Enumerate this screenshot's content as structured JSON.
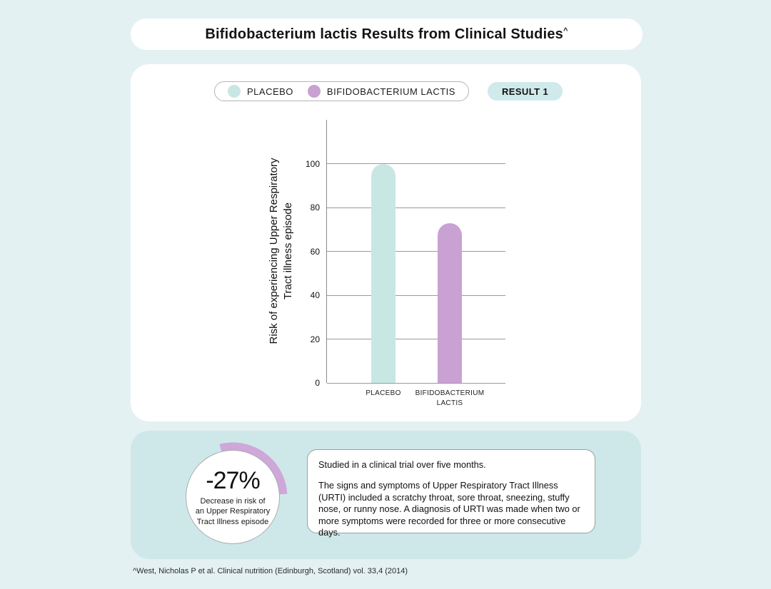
{
  "title": {
    "text": "Bifidobacterium lactis Results from Clinical Studies",
    "superscript": "^"
  },
  "legend": {
    "items": [
      {
        "label": "PLACEBO",
        "color": "#c8e6e4"
      },
      {
        "label": "BIFIDOBACTERIUM LACTIS",
        "color": "#c9a1d2"
      }
    ]
  },
  "result_badge": {
    "label": "RESULT 1",
    "bg": "#d0eaeb"
  },
  "chart_data": {
    "type": "bar",
    "categories": [
      "PLACEBO",
      "BIFIDOBACTERIUM LACTIS"
    ],
    "values": [
      100,
      73
    ],
    "colors": [
      "#c8e6e4",
      "#c9a1d2"
    ],
    "title": "",
    "xlabel": "",
    "ylabel": "Risk of experiencing Upper Respiratory Tract illness episode",
    "yticks": [
      0,
      20,
      40,
      60,
      80,
      100
    ],
    "ylim": [
      0,
      120
    ],
    "grid": true,
    "gridline_color": "#9a9a9a",
    "legend_position": "top"
  },
  "stat": {
    "value": "-27%",
    "caption_lines": [
      "Decrease in risk of",
      "an Upper Respiratory",
      "Tract Illness episode"
    ],
    "arc_percent": 27,
    "arc_color": "#cfa7d9"
  },
  "note": {
    "paragraph1": "Studied in a clinical trial over five months.",
    "paragraph2": "The signs and symptoms of Upper Respiratory Tract Illness (URTI) included a scratchy throat, sore throat, sneezing, stuffy nose, or runny nose. A diagnosis of URTI was made when two or more symptoms were recorded for three or more consecutive days."
  },
  "footnote": "^West, Nicholas P et al. Clinical nutrition (Edinburgh, Scotland) vol. 33,4 (2014)",
  "colors": {
    "page_bg": "#e4f1f2",
    "panel_bg": "#ffffff",
    "summary_panel_bg": "#cee8e9",
    "text": "#141414"
  }
}
